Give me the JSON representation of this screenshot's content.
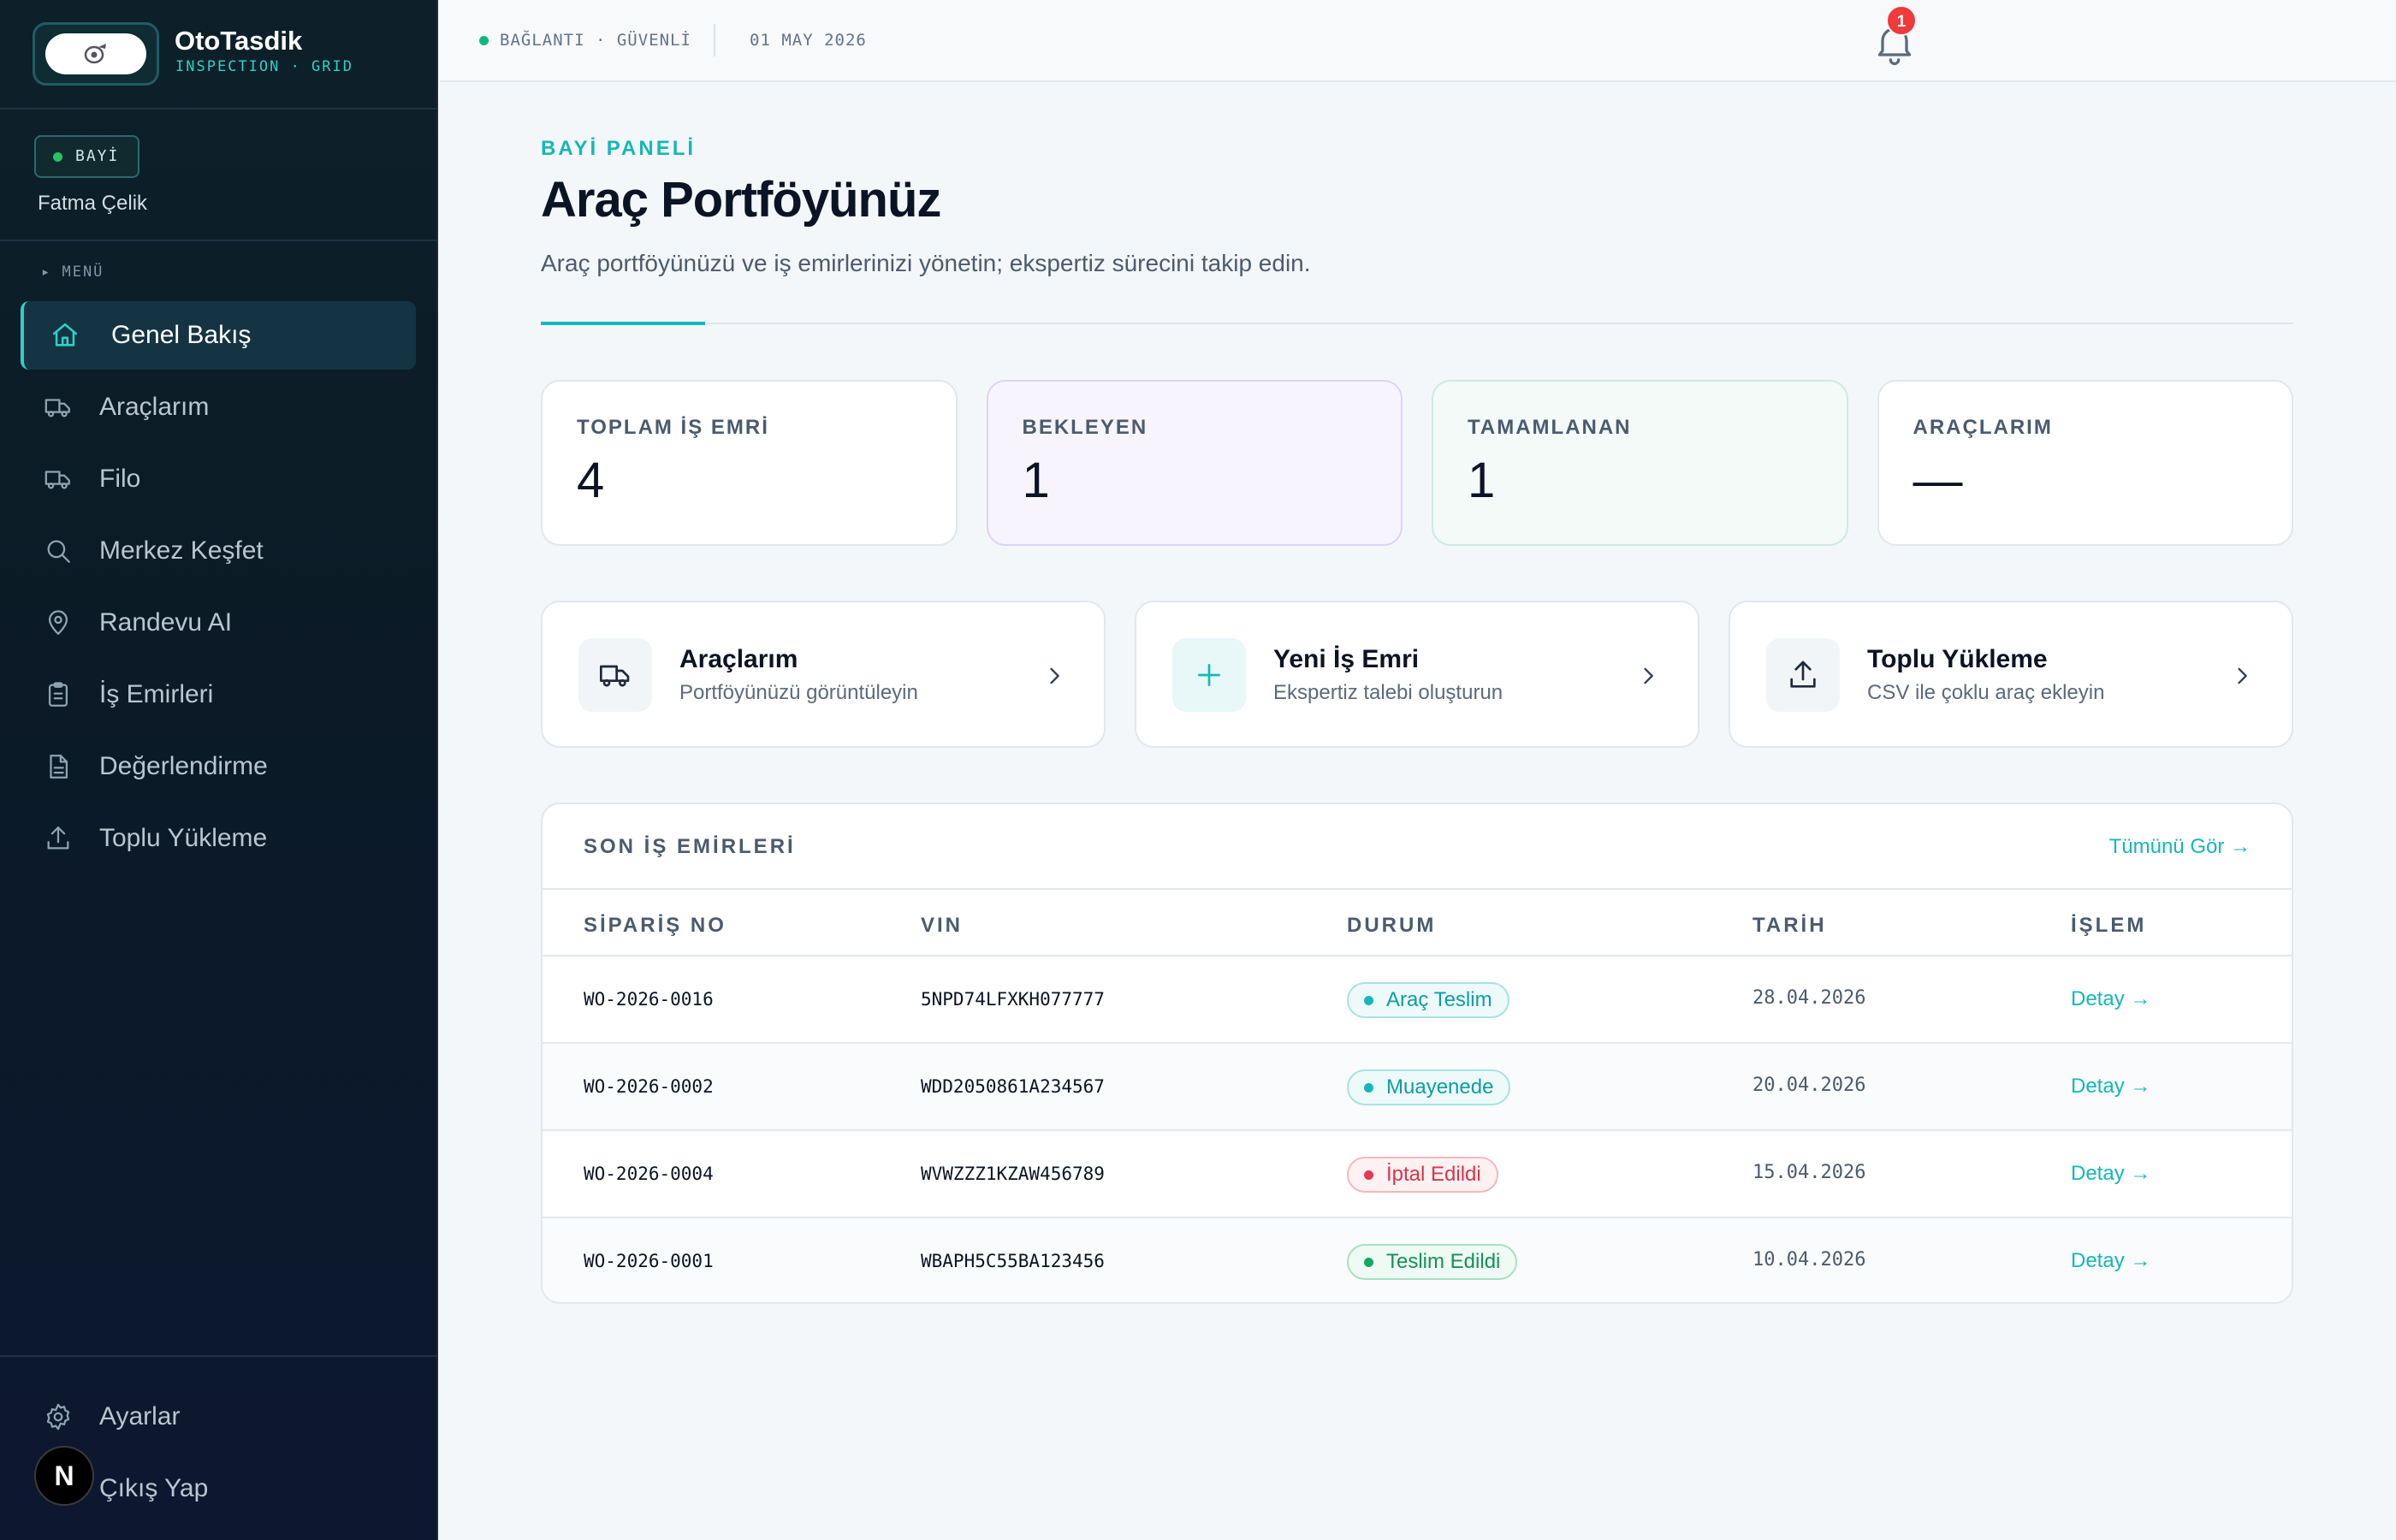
{
  "brand": {
    "name": "OtoTasdik",
    "subtitle": "INSPECTION · GRID"
  },
  "user": {
    "role": "BAYİ",
    "name": "Fatma Çelik"
  },
  "menu_label": "▸ MENÜ",
  "nav": [
    {
      "label": "Genel Bakış",
      "icon": "home-icon",
      "active": true
    },
    {
      "label": "Araçlarım",
      "icon": "truck-icon"
    },
    {
      "label": "Filo",
      "icon": "truck-icon"
    },
    {
      "label": "Merkez Keşfet",
      "icon": "search-icon"
    },
    {
      "label": "Randevu AI",
      "icon": "map-pin-icon"
    },
    {
      "label": "İş Emirleri",
      "icon": "clipboard-icon"
    },
    {
      "label": "Değerlendirme",
      "icon": "file-icon"
    },
    {
      "label": "Toplu Yükleme",
      "icon": "upload-icon"
    }
  ],
  "bottom_nav": [
    {
      "label": "Ayarlar",
      "icon": "gear-icon"
    },
    {
      "label": "Çıkış Yap",
      "icon": "logout-icon"
    }
  ],
  "dev_badge": "N",
  "topbar": {
    "connection": "BAĞLANTI · GÜVENLİ",
    "date": "01 MAY 2026",
    "notification_count": "1"
  },
  "header": {
    "eyebrow": "BAYİ PANELİ",
    "title": "Araç Portföyünüz",
    "subtitle": "Araç portföyünüzü ve iş emirlerinizi yönetin; ekspertiz sürecini takip edin."
  },
  "stats": [
    {
      "label": "TOPLAM İŞ EMRİ",
      "value": "4"
    },
    {
      "label": "BEKLEYEN",
      "value": "1"
    },
    {
      "label": "TAMAMLANAN",
      "value": "1"
    },
    {
      "label": "ARAÇLARIM",
      "value": "—"
    }
  ],
  "actions": [
    {
      "title": "Araçlarım",
      "desc": "Portföyünüzü görüntüleyin",
      "icon": "truck-icon"
    },
    {
      "title": "Yeni İş Emri",
      "desc": "Ekspertiz talebi oluşturun",
      "icon": "plus-icon"
    },
    {
      "title": "Toplu Yükleme",
      "desc": "CSV ile çoklu araç ekleyin",
      "icon": "upload-icon"
    }
  ],
  "orders": {
    "title": "SON İŞ EMİRLERİ",
    "view_all": "Tümünü Gör →",
    "columns": [
      "SİPARİŞ NO",
      "VIN",
      "DURUM",
      "TARİH",
      "İŞLEM"
    ],
    "rows": [
      {
        "no": "WO-2026-0016",
        "vin": "5NPD74LFXKH077777",
        "status": "Araç Teslim",
        "tone": "teal",
        "date": "28.04.2026",
        "action": "Detay →"
      },
      {
        "no": "WO-2026-0002",
        "vin": "WDD2050861A234567",
        "status": "Muayenede",
        "tone": "teal",
        "date": "20.04.2026",
        "action": "Detay →"
      },
      {
        "no": "WO-2026-0004",
        "vin": "WVWZZZ1KZAW456789",
        "status": "İptal Edildi",
        "tone": "red",
        "date": "15.04.2026",
        "action": "Detay →"
      },
      {
        "no": "WO-2026-0001",
        "vin": "WBAPH5C55BA123456",
        "status": "Teslim Edildi",
        "tone": "green",
        "date": "10.04.2026",
        "action": "Detay →"
      }
    ]
  },
  "colors": {
    "accent": "#14b8b8",
    "sidebar": "#0b1a26",
    "danger": "#e23a52",
    "success": "#16a764"
  }
}
